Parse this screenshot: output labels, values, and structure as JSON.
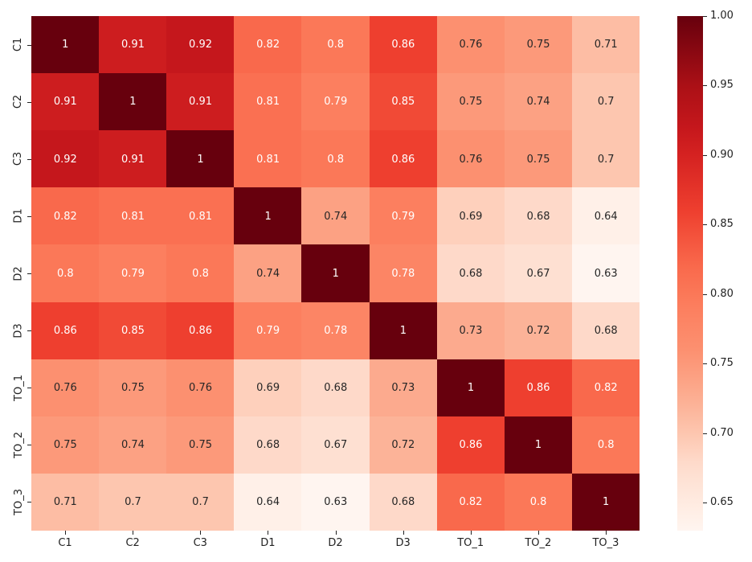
{
  "chart_data": {
    "type": "heatmap",
    "title": "",
    "xlabel": "",
    "ylabel": "",
    "x_labels": [
      "C1",
      "C2",
      "C3",
      "D1",
      "D2",
      "D3",
      "TO_1",
      "TO_2",
      "TO_3"
    ],
    "y_labels": [
      "C1",
      "C2",
      "C3",
      "D1",
      "D2",
      "D3",
      "TO_1",
      "TO_2",
      "TO_3"
    ],
    "values": [
      [
        1,
        0.91,
        0.92,
        0.82,
        0.8,
        0.86,
        0.76,
        0.75,
        0.71
      ],
      [
        0.91,
        1,
        0.91,
        0.81,
        0.79,
        0.85,
        0.75,
        0.74,
        0.7
      ],
      [
        0.92,
        0.91,
        1,
        0.81,
        0.8,
        0.86,
        0.76,
        0.75,
        0.7
      ],
      [
        0.82,
        0.81,
        0.81,
        1,
        0.74,
        0.79,
        0.69,
        0.68,
        0.64
      ],
      [
        0.8,
        0.79,
        0.8,
        0.74,
        1,
        0.78,
        0.68,
        0.67,
        0.63
      ],
      [
        0.86,
        0.85,
        0.86,
        0.79,
        0.78,
        1,
        0.73,
        0.72,
        0.68
      ],
      [
        0.76,
        0.75,
        0.76,
        0.69,
        0.68,
        0.73,
        1,
        0.86,
        0.82
      ],
      [
        0.75,
        0.74,
        0.75,
        0.68,
        0.67,
        0.72,
        0.86,
        1,
        0.8
      ],
      [
        0.71,
        0.7,
        0.7,
        0.64,
        0.63,
        0.68,
        0.82,
        0.8,
        1
      ]
    ],
    "colormap": "Reds",
    "vmin": 0.63,
    "vmax": 1.0,
    "annotated": true,
    "colorbar": {
      "position": "right",
      "ticks": [
        1.0,
        0.95,
        0.9,
        0.85,
        0.8,
        0.75,
        0.7,
        0.65
      ],
      "tick_labels": [
        "1.00",
        "0.95",
        "0.90",
        "0.85",
        "0.80",
        "0.75",
        "0.70",
        "0.65"
      ]
    },
    "grid": false
  },
  "colors": {
    "text_dark": "#262626",
    "text_light": "#ffffff",
    "ramp": [
      [
        0.63,
        "#fff5f0"
      ],
      [
        0.64,
        "#fff0e8"
      ],
      [
        0.67,
        "#fee0d2"
      ],
      [
        0.68,
        "#fed9c9"
      ],
      [
        0.7,
        "#fdc6af"
      ],
      [
        0.72,
        "#fcb398"
      ],
      [
        0.74,
        "#fca183"
      ],
      [
        0.76,
        "#fc9070"
      ],
      [
        0.79,
        "#fc7f5f"
      ],
      [
        0.8,
        "#fb7858"
      ],
      [
        0.82,
        "#f9694c"
      ],
      [
        0.85,
        "#f14a36"
      ],
      [
        0.86,
        "#ee3f2f"
      ],
      [
        0.9,
        "#d52221"
      ],
      [
        0.92,
        "#c5171c"
      ],
      [
        0.95,
        "#ab1016"
      ],
      [
        1.0,
        "#67000d"
      ]
    ],
    "white_text_threshold": 0.775
  }
}
